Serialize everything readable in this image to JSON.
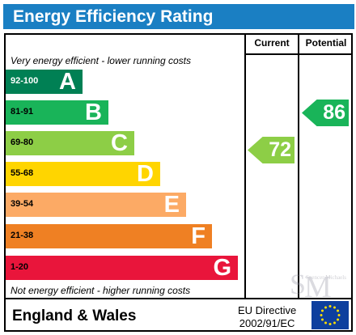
{
  "title": "Energy Efficiency Rating",
  "columns": {
    "current": "Current",
    "potential": "Potential"
  },
  "notes": {
    "top": "Very energy efficient - lower running costs",
    "bottom": "Not energy efficient - higher running costs"
  },
  "bands": [
    {
      "range": "92-100",
      "letter": "A",
      "color": "#008054"
    },
    {
      "range": "81-91",
      "letter": "B",
      "color": "#19b459"
    },
    {
      "range": "69-80",
      "letter": "C",
      "color": "#8dce46"
    },
    {
      "range": "55-68",
      "letter": "D",
      "color": "#ffd500"
    },
    {
      "range": "39-54",
      "letter": "E",
      "color": "#fcaa65"
    },
    {
      "range": "21-38",
      "letter": "F",
      "color": "#ef8023"
    },
    {
      "range": "1-20",
      "letter": "G",
      "color": "#e9153b"
    }
  ],
  "ratings": {
    "current": {
      "value": "72",
      "band": "C",
      "color": "#8dce46"
    },
    "potential": {
      "value": "86",
      "band": "B",
      "color": "#19b459"
    }
  },
  "footer": {
    "country": "England & Wales",
    "directive_line1": "EU Directive",
    "directive_line2": "2002/91/EC"
  },
  "watermark_text": "Spencer Michaels",
  "eu_flag_colors": {
    "field": "#0e3f9e",
    "stars": "#ffde00"
  }
}
